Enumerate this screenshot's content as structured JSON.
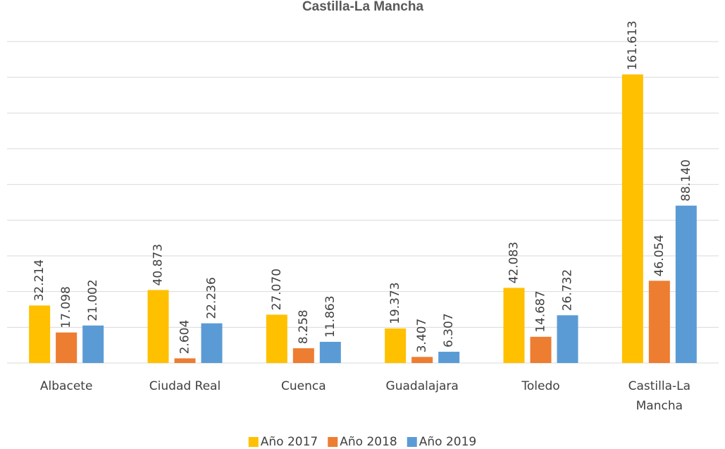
{
  "chart_data": {
    "type": "bar",
    "title": "Castilla-La Mancha",
    "categories": [
      "Albacete",
      "Ciudad Real",
      "Cuenca",
      "Guadalajara",
      "Toledo",
      "Castilla-La Mancha"
    ],
    "series": [
      {
        "name": "Año 2017",
        "color": "#ffc000",
        "values": [
          32.214,
          40.873,
          27.07,
          19.373,
          42.083,
          161.613
        ],
        "value_labels": [
          "32.214",
          "40.873",
          "27.070",
          "19.373",
          "42.083",
          "161.613"
        ]
      },
      {
        "name": "Año 2018",
        "color": "#ed7d31",
        "values": [
          17.098,
          2.604,
          8.258,
          3.407,
          14.687,
          46.054
        ],
        "value_labels": [
          "17.098",
          "2.604",
          "8.258",
          "3.407",
          "14.687",
          "46.054"
        ]
      },
      {
        "name": "Año 2019",
        "color": "#5b9bd5",
        "values": [
          21.002,
          22.236,
          11.863,
          6.307,
          26.732,
          88.14
        ],
        "value_labels": [
          "21.002",
          "22.236",
          "11.863",
          "6.307",
          "26.732",
          "88.140"
        ]
      }
    ],
    "ylim": [
      0,
      180
    ],
    "yticks": [
      0,
      20,
      40,
      60,
      80,
      100,
      120,
      140,
      160,
      180
    ],
    "grid": true,
    "legend": "bottom"
  }
}
